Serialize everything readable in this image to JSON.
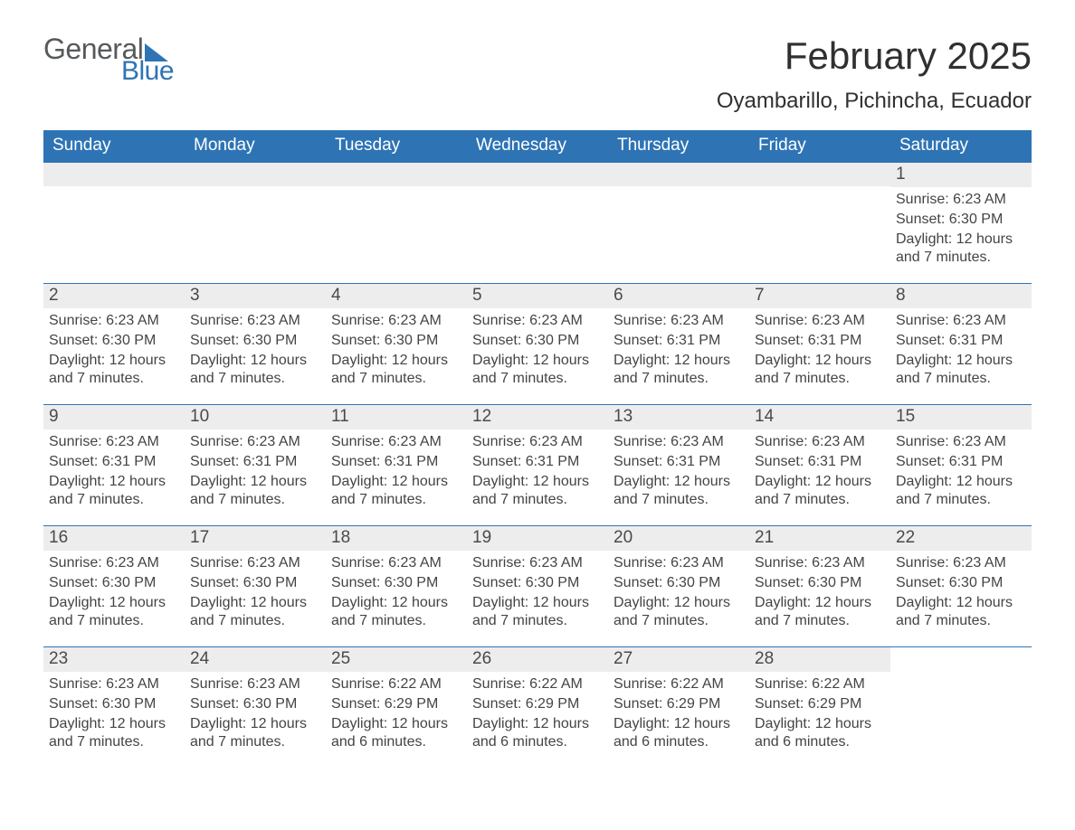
{
  "branding": {
    "word1": "General",
    "word2": "Blue"
  },
  "title": {
    "month": "February 2025",
    "location": "Oyambarillo, Pichincha, Ecuador"
  },
  "colors": {
    "header_blue": "#2e74b5",
    "day_bg": "#ededed",
    "text": "#444444",
    "logo_grey": "#565a5c",
    "background": "#ffffff"
  },
  "dow": [
    "Sunday",
    "Monday",
    "Tuesday",
    "Wednesday",
    "Thursday",
    "Friday",
    "Saturday"
  ],
  "labels": {
    "sunrise": "Sunrise:",
    "sunset": "Sunset:",
    "daylight": "Daylight:"
  },
  "weeks": [
    [
      null,
      null,
      null,
      null,
      null,
      null,
      {
        "n": "1",
        "sunrise": "6:23 AM",
        "sunset": "6:30 PM",
        "daylight": "12 hours and 7 minutes."
      }
    ],
    [
      {
        "n": "2",
        "sunrise": "6:23 AM",
        "sunset": "6:30 PM",
        "daylight": "12 hours and 7 minutes."
      },
      {
        "n": "3",
        "sunrise": "6:23 AM",
        "sunset": "6:30 PM",
        "daylight": "12 hours and 7 minutes."
      },
      {
        "n": "4",
        "sunrise": "6:23 AM",
        "sunset": "6:30 PM",
        "daylight": "12 hours and 7 minutes."
      },
      {
        "n": "5",
        "sunrise": "6:23 AM",
        "sunset": "6:30 PM",
        "daylight": "12 hours and 7 minutes."
      },
      {
        "n": "6",
        "sunrise": "6:23 AM",
        "sunset": "6:31 PM",
        "daylight": "12 hours and 7 minutes."
      },
      {
        "n": "7",
        "sunrise": "6:23 AM",
        "sunset": "6:31 PM",
        "daylight": "12 hours and 7 minutes."
      },
      {
        "n": "8",
        "sunrise": "6:23 AM",
        "sunset": "6:31 PM",
        "daylight": "12 hours and 7 minutes."
      }
    ],
    [
      {
        "n": "9",
        "sunrise": "6:23 AM",
        "sunset": "6:31 PM",
        "daylight": "12 hours and 7 minutes."
      },
      {
        "n": "10",
        "sunrise": "6:23 AM",
        "sunset": "6:31 PM",
        "daylight": "12 hours and 7 minutes."
      },
      {
        "n": "11",
        "sunrise": "6:23 AM",
        "sunset": "6:31 PM",
        "daylight": "12 hours and 7 minutes."
      },
      {
        "n": "12",
        "sunrise": "6:23 AM",
        "sunset": "6:31 PM",
        "daylight": "12 hours and 7 minutes."
      },
      {
        "n": "13",
        "sunrise": "6:23 AM",
        "sunset": "6:31 PM",
        "daylight": "12 hours and 7 minutes."
      },
      {
        "n": "14",
        "sunrise": "6:23 AM",
        "sunset": "6:31 PM",
        "daylight": "12 hours and 7 minutes."
      },
      {
        "n": "15",
        "sunrise": "6:23 AM",
        "sunset": "6:31 PM",
        "daylight": "12 hours and 7 minutes."
      }
    ],
    [
      {
        "n": "16",
        "sunrise": "6:23 AM",
        "sunset": "6:30 PM",
        "daylight": "12 hours and 7 minutes."
      },
      {
        "n": "17",
        "sunrise": "6:23 AM",
        "sunset": "6:30 PM",
        "daylight": "12 hours and 7 minutes."
      },
      {
        "n": "18",
        "sunrise": "6:23 AM",
        "sunset": "6:30 PM",
        "daylight": "12 hours and 7 minutes."
      },
      {
        "n": "19",
        "sunrise": "6:23 AM",
        "sunset": "6:30 PM",
        "daylight": "12 hours and 7 minutes."
      },
      {
        "n": "20",
        "sunrise": "6:23 AM",
        "sunset": "6:30 PM",
        "daylight": "12 hours and 7 minutes."
      },
      {
        "n": "21",
        "sunrise": "6:23 AM",
        "sunset": "6:30 PM",
        "daylight": "12 hours and 7 minutes."
      },
      {
        "n": "22",
        "sunrise": "6:23 AM",
        "sunset": "6:30 PM",
        "daylight": "12 hours and 7 minutes."
      }
    ],
    [
      {
        "n": "23",
        "sunrise": "6:23 AM",
        "sunset": "6:30 PM",
        "daylight": "12 hours and 7 minutes."
      },
      {
        "n": "24",
        "sunrise": "6:23 AM",
        "sunset": "6:30 PM",
        "daylight": "12 hours and 7 minutes."
      },
      {
        "n": "25",
        "sunrise": "6:22 AM",
        "sunset": "6:29 PM",
        "daylight": "12 hours and 6 minutes."
      },
      {
        "n": "26",
        "sunrise": "6:22 AM",
        "sunset": "6:29 PM",
        "daylight": "12 hours and 6 minutes."
      },
      {
        "n": "27",
        "sunrise": "6:22 AM",
        "sunset": "6:29 PM",
        "daylight": "12 hours and 6 minutes."
      },
      {
        "n": "28",
        "sunrise": "6:22 AM",
        "sunset": "6:29 PM",
        "daylight": "12 hours and 6 minutes."
      },
      null
    ]
  ]
}
